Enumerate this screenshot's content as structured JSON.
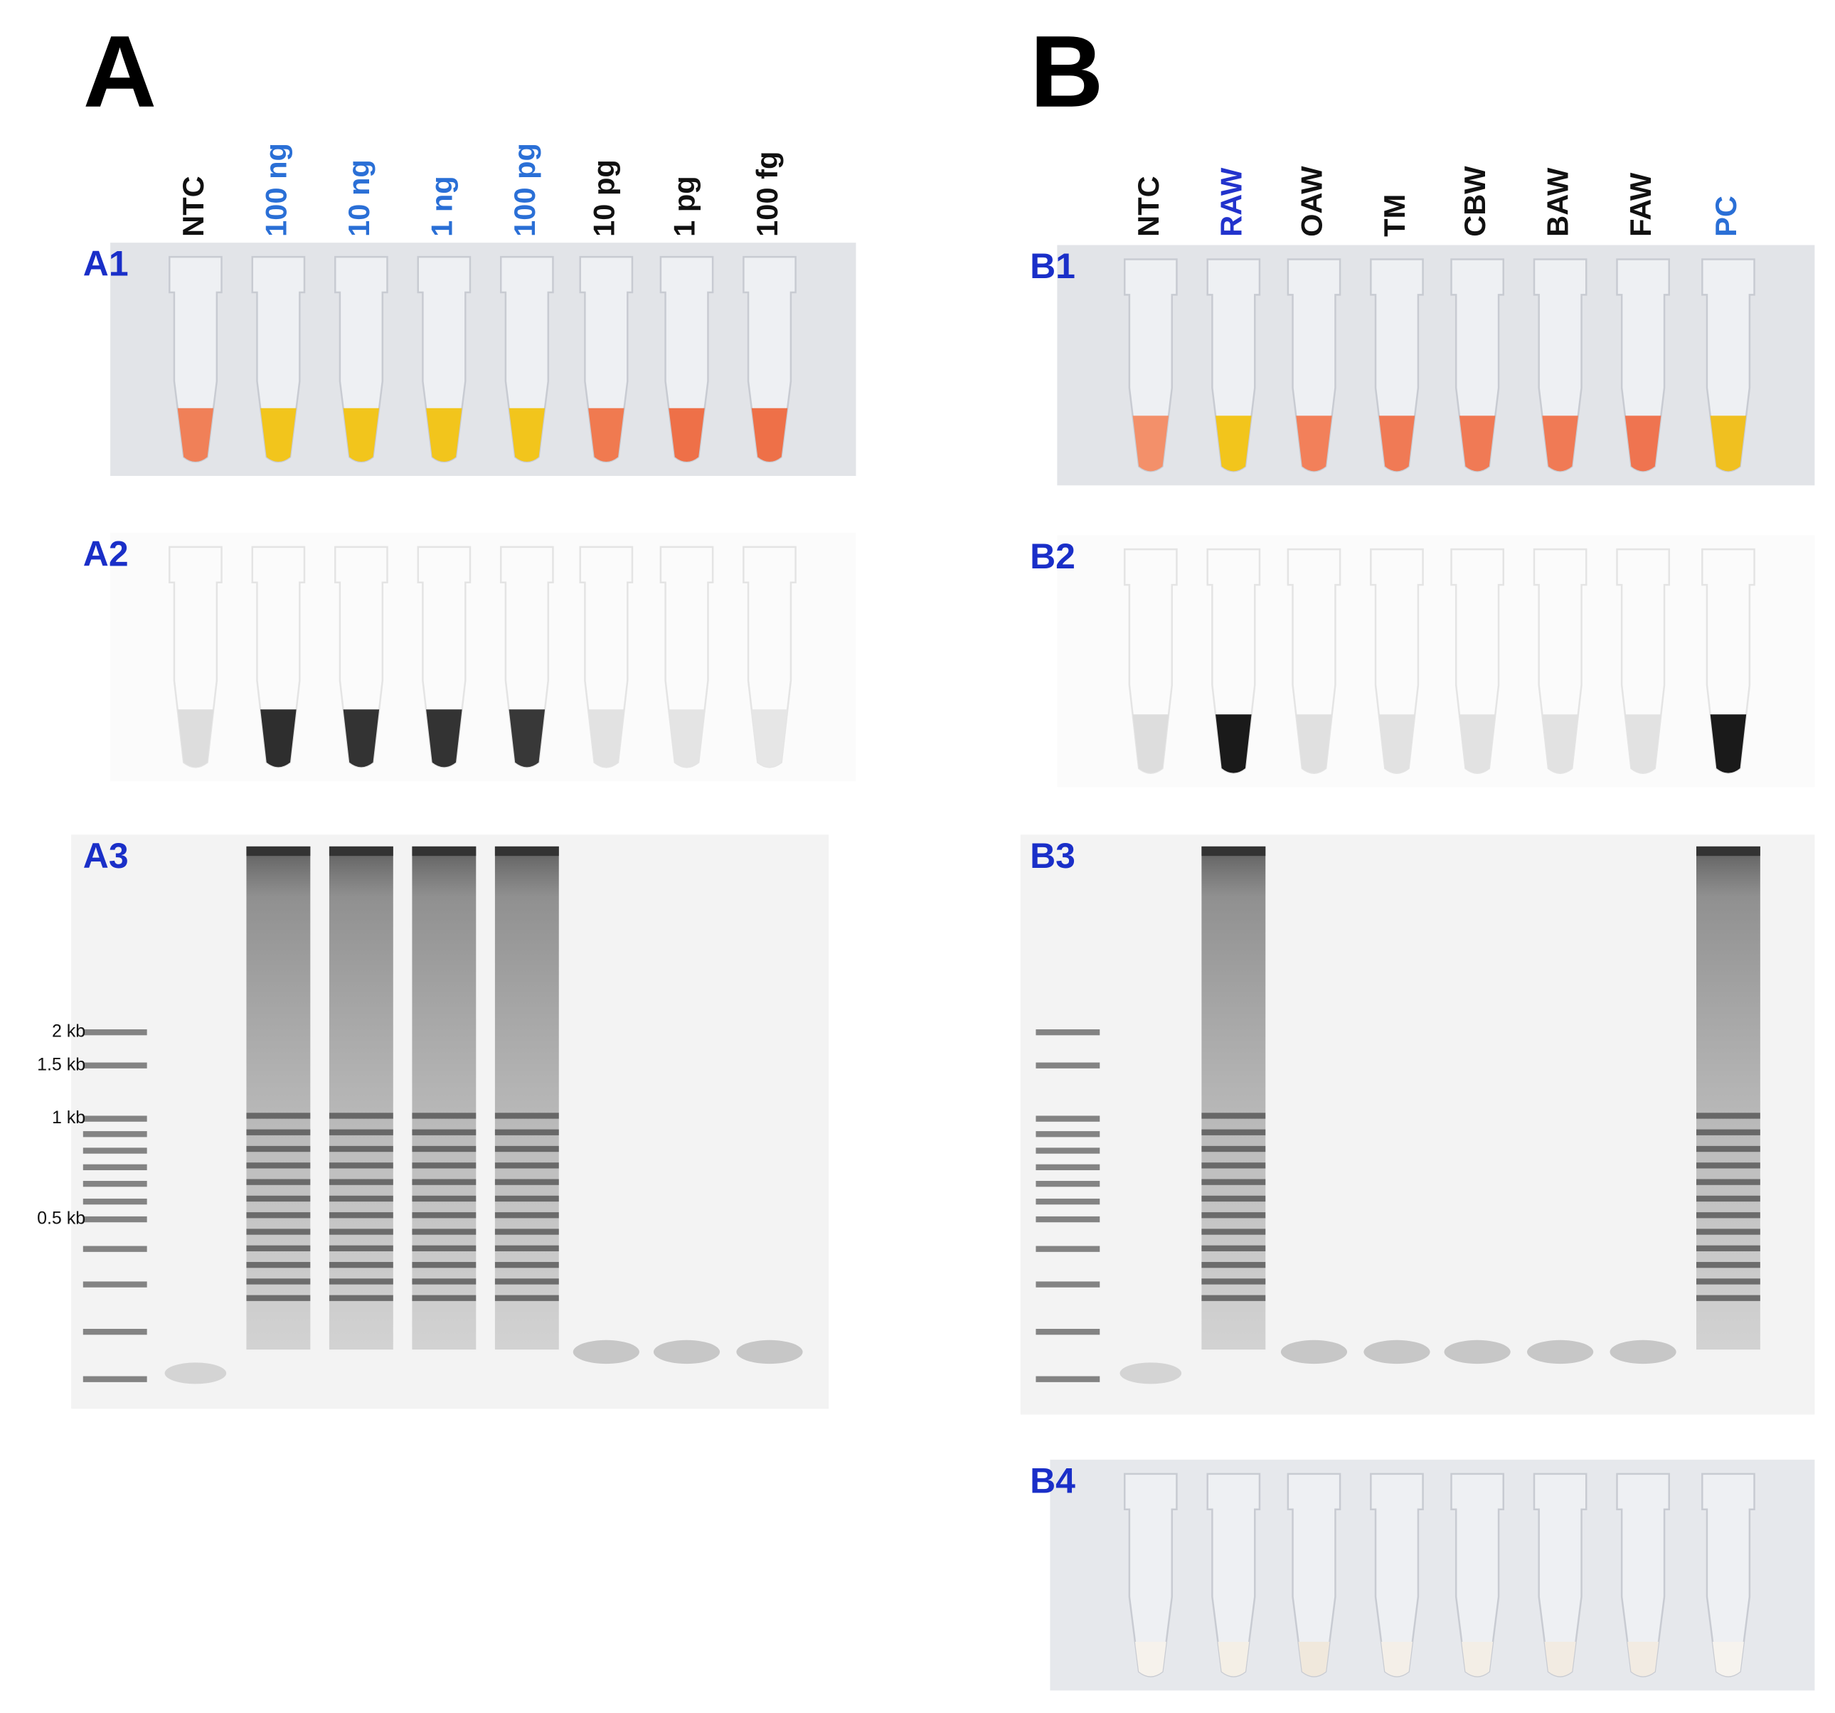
{
  "panels": [
    {
      "label": "A",
      "lanes": [
        {
          "text": "NTC",
          "color": "#111111"
        },
        {
          "text": "100 ng",
          "color": "#2a6fd6"
        },
        {
          "text": "10 ng",
          "color": "#2a6fd6"
        },
        {
          "text": "1 ng",
          "color": "#2a6fd6"
        },
        {
          "text": "100 pg",
          "color": "#2a6fd6"
        },
        {
          "text": "10 pg",
          "color": "#111111"
        },
        {
          "text": "1 pg",
          "color": "#111111"
        },
        {
          "text": "100 fg",
          "color": "#111111"
        }
      ],
      "subpanels": [
        {
          "label": "A1",
          "kind": "colorimetric",
          "lane_colors": [
            "#f08058",
            "#f2c51c",
            "#f2c51c",
            "#f2c51c",
            "#f2c51c",
            "#f07a50",
            "#ee7048",
            "#ee7048"
          ]
        },
        {
          "label": "A2",
          "kind": "fluorescence",
          "lane_colors": [
            "#dddddd",
            "#2e2e2e",
            "#333333",
            "#333333",
            "#383838",
            "#e2e2e2",
            "#e4e4e4",
            "#e6e6e6"
          ]
        },
        {
          "label": "A3",
          "kind": "gel",
          "gel_lanes": [
            "faint",
            "smear",
            "smear",
            "smear",
            "smear",
            "dimer",
            "dimer",
            "dimer"
          ],
          "ladder_labels": [
            "2 kb",
            "1.5 kb",
            "1 kb",
            "0.5 kb"
          ]
        }
      ]
    },
    {
      "label": "B",
      "lanes": [
        {
          "text": "NTC",
          "color": "#111111"
        },
        {
          "text": "RAW",
          "color": "#2233cc"
        },
        {
          "text": "OAW",
          "color": "#111111"
        },
        {
          "text": "TM",
          "color": "#111111"
        },
        {
          "text": "CBW",
          "color": "#111111"
        },
        {
          "text": "BAW",
          "color": "#111111"
        },
        {
          "text": "FAW",
          "color": "#111111"
        },
        {
          "text": "PC",
          "color": "#2a6fd6"
        }
      ],
      "subpanels": [
        {
          "label": "B1",
          "kind": "colorimetric",
          "lane_colors": [
            "#f3906a",
            "#f2c51c",
            "#f2805a",
            "#f07a55",
            "#f07a55",
            "#f07a55",
            "#ef7450",
            "#f0c020"
          ]
        },
        {
          "label": "B2",
          "kind": "fluorescence",
          "lane_colors": [
            "#dddddd",
            "#1a1a1a",
            "#e0e0e0",
            "#e2e2e2",
            "#e2e2e2",
            "#e2e2e2",
            "#e2e2e2",
            "#1a1a1a"
          ]
        },
        {
          "label": "B3",
          "kind": "gel",
          "gel_lanes": [
            "faint",
            "smear",
            "dimer",
            "dimer",
            "dimer",
            "dimer",
            "dimer",
            "smear"
          ]
        },
        {
          "label": "B4",
          "kind": "pellet",
          "lane_colors": [
            "#f6f2ec",
            "#f4efe6",
            "#f0e8dc",
            "#f4efe8",
            "#f3eee6",
            "#f2ebe2",
            "#f2ebe2",
            "#f6f3ee"
          ]
        }
      ]
    }
  ]
}
